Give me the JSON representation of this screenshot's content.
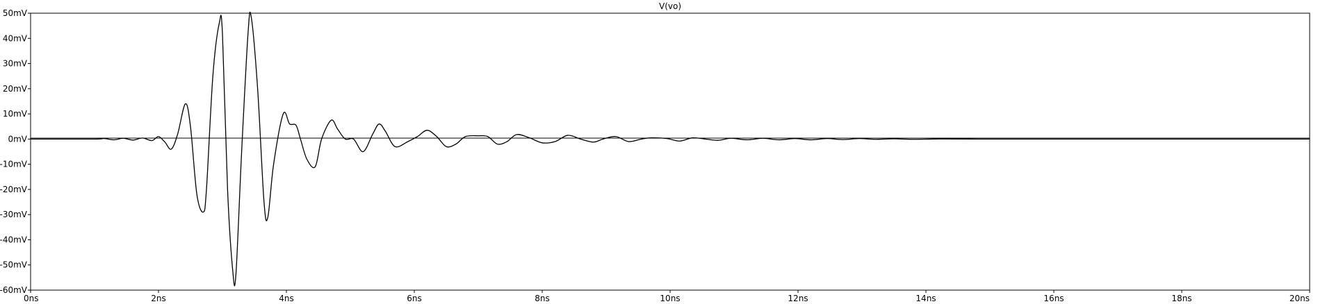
{
  "chart_data": {
    "type": "line",
    "title": "V(vo)",
    "xlabel": "",
    "ylabel": "",
    "x_unit": "ns",
    "y_unit": "mV",
    "xlim": [
      0,
      20
    ],
    "ylim": [
      -60,
      50
    ],
    "grid": false,
    "legend": "none",
    "x_ticks": [
      {
        "value": 0,
        "label": "0ns"
      },
      {
        "value": 2,
        "label": "2ns"
      },
      {
        "value": 4,
        "label": "4ns"
      },
      {
        "value": 6,
        "label": "6ns"
      },
      {
        "value": 8,
        "label": "8ns"
      },
      {
        "value": 10,
        "label": "10ns"
      },
      {
        "value": 12,
        "label": "12ns"
      },
      {
        "value": 14,
        "label": "14ns"
      },
      {
        "value": 16,
        "label": "16ns"
      },
      {
        "value": 18,
        "label": "18ns"
      },
      {
        "value": 20,
        "label": "20ns"
      }
    ],
    "y_ticks": [
      {
        "value": 50,
        "label": "50mV"
      },
      {
        "value": 40,
        "label": "40mV"
      },
      {
        "value": 30,
        "label": "30mV"
      },
      {
        "value": 20,
        "label": "20mV"
      },
      {
        "value": 10,
        "label": "10mV"
      },
      {
        "value": 0,
        "label": "0mV"
      },
      {
        "value": -10,
        "label": "-10mV"
      },
      {
        "value": -20,
        "label": "-20mV"
      },
      {
        "value": -30,
        "label": "-30mV"
      },
      {
        "value": -40,
        "label": "-40mV"
      },
      {
        "value": -50,
        "label": "-50mV"
      },
      {
        "value": -60,
        "label": "-60mV"
      }
    ],
    "series": [
      {
        "color": "#000000",
        "x": [
          0,
          1.0,
          1.15,
          1.3,
          1.45,
          1.6,
          1.75,
          1.9,
          2.0,
          2.1,
          2.2,
          2.3,
          2.42,
          2.5,
          2.6,
          2.7,
          2.75,
          2.85,
          2.95,
          3.0,
          3.08,
          3.16,
          3.21,
          3.3,
          3.4,
          3.45,
          3.55,
          3.65,
          3.71,
          3.8,
          3.95,
          4.05,
          4.15,
          4.22,
          4.32,
          4.45,
          4.55,
          4.7,
          4.8,
          4.92,
          5.05,
          5.2,
          5.35,
          5.45,
          5.55,
          5.7,
          5.9,
          6.05,
          6.2,
          6.35,
          6.5,
          6.65,
          6.8,
          7.0,
          7.15,
          7.3,
          7.45,
          7.6,
          7.8,
          8.0,
          8.2,
          8.4,
          8.6,
          8.8,
          8.95,
          9.15,
          9.35,
          9.55,
          9.7,
          9.95,
          10.15,
          10.35,
          10.55,
          10.75,
          10.95,
          11.2,
          11.45,
          11.7,
          11.95,
          12.2,
          12.45,
          12.7,
          12.95,
          13.2,
          13.5,
          13.8,
          14.2,
          14.8,
          16,
          20
        ],
        "y": [
          0,
          0,
          0.2,
          -0.3,
          0.3,
          -0.4,
          0.4,
          -0.6,
          1.0,
          -1.2,
          -4.0,
          2.0,
          14.0,
          5.0,
          -22.0,
          -29.0,
          -20.0,
          25.0,
          46.0,
          42.0,
          -20.0,
          -52.0,
          -54.0,
          -5.0,
          42.0,
          48.5,
          20.0,
          -25.0,
          -31.0,
          -10.0,
          10.0,
          6.0,
          5.5,
          0.0,
          -8.0,
          -11.0,
          0.0,
          7.5,
          4.0,
          0.0,
          0.0,
          -5.0,
          2.0,
          6.0,
          3.0,
          -3.0,
          -1.0,
          1.0,
          3.5,
          1.0,
          -3.0,
          -2.0,
          1.0,
          1.3,
          1.0,
          -2.0,
          -1.0,
          1.8,
          0.5,
          -1.5,
          -1.0,
          1.5,
          0.0,
          -1.2,
          0.0,
          1.0,
          -1.0,
          0.0,
          0.5,
          0.2,
          -0.8,
          0.5,
          0.0,
          -0.5,
          0.3,
          -0.3,
          0.3,
          -0.3,
          0.2,
          -0.3,
          0.2,
          -0.2,
          0.2,
          -0.1,
          0.1,
          -0.1,
          0.05,
          0,
          0,
          0
        ]
      }
    ]
  }
}
